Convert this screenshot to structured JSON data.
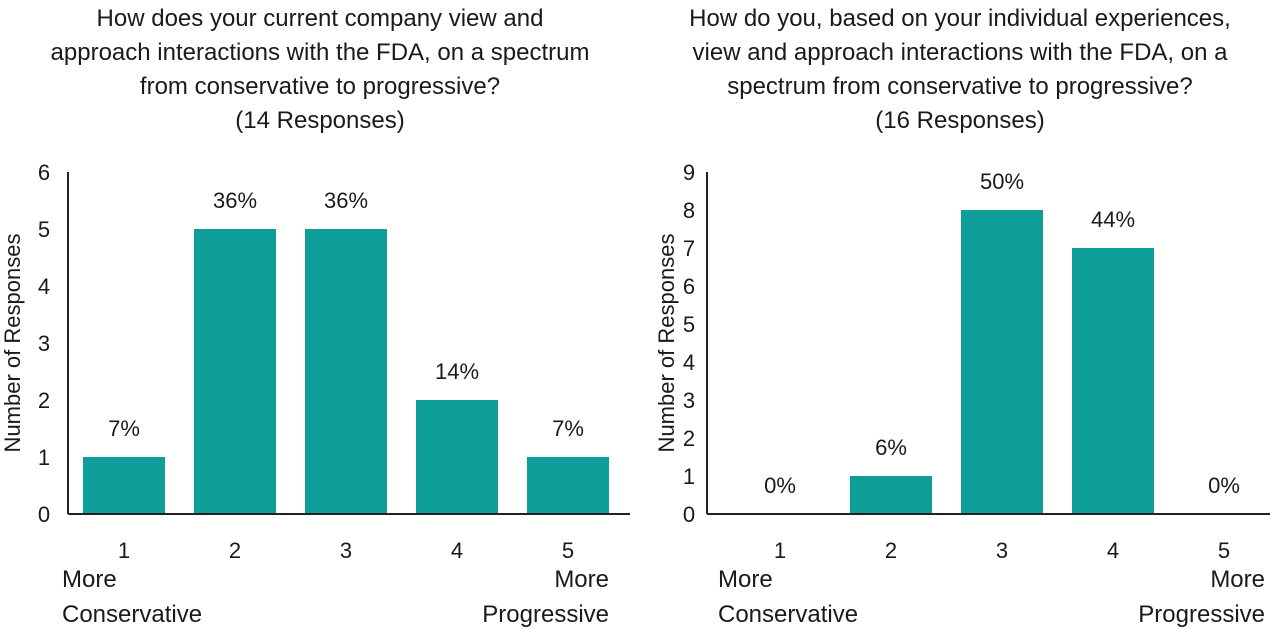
{
  "colors": {
    "bar": "#0f9d9a",
    "axis": "#222222"
  },
  "chart_data": [
    {
      "type": "bar",
      "title_lines": [
        "How does your current company view and",
        "approach interactions with the FDA, on a spectrum",
        "from conservative to progressive?",
        "(14 Responses)"
      ],
      "ylabel": "Number of Responses",
      "xlabel": "",
      "ylim": [
        0,
        6
      ],
      "yticks": [
        "0",
        "1",
        "2",
        "3",
        "4",
        "5",
        "6"
      ],
      "categories": [
        "1",
        "2",
        "3",
        "4",
        "5"
      ],
      "values": [
        1,
        5,
        5,
        2,
        1
      ],
      "data_labels": [
        "7%",
        "36%",
        "36%",
        "14%",
        "7%"
      ],
      "endpoint_labels": {
        "left": [
          "More",
          "Conservative"
        ],
        "right": [
          "More",
          "Progressive"
        ]
      },
      "grid": false,
      "legend": "none"
    },
    {
      "type": "bar",
      "title_lines": [
        "How do you, based on your individual experiences,",
        "view and approach interactions with the FDA, on a",
        "spectrum from conservative to progressive?",
        "(16 Responses)"
      ],
      "ylabel": "Number of Responses",
      "xlabel": "",
      "ylim": [
        0,
        9
      ],
      "yticks": [
        "0",
        "1",
        "2",
        "3",
        "4",
        "5",
        "6",
        "7",
        "8",
        "9"
      ],
      "categories": [
        "1",
        "2",
        "3",
        "4",
        "5"
      ],
      "values": [
        0,
        1,
        8,
        7,
        0
      ],
      "data_labels": [
        "0%",
        "6%",
        "50%",
        "44%",
        "0%"
      ],
      "endpoint_labels": {
        "left": [
          "More",
          "Conservative"
        ],
        "right": [
          "More",
          "Progressive"
        ]
      },
      "grid": false,
      "legend": "none"
    }
  ]
}
